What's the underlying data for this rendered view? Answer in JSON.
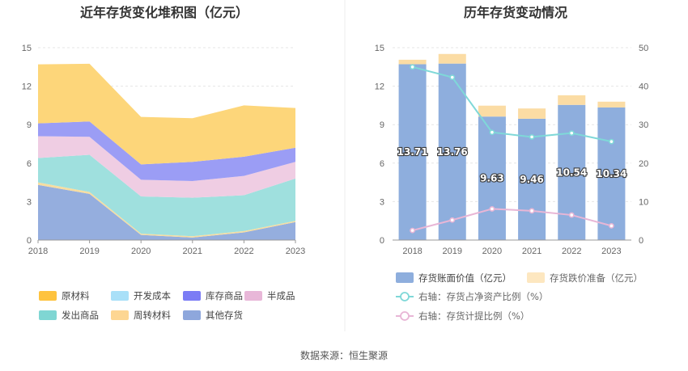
{
  "source": "数据来源：恒生聚源",
  "chart_data": [
    {
      "type": "area",
      "stacked": true,
      "title": "近年存货变化堆积图（亿元）",
      "x": [
        "2018",
        "2019",
        "2020",
        "2021",
        "2022",
        "2023"
      ],
      "ylim": [
        0,
        15
      ],
      "yticks": [
        "0",
        "3",
        "6",
        "9",
        "12",
        "15"
      ],
      "grid": true,
      "legend_position": "bottom",
      "series": [
        {
          "name": "其他存货",
          "color": "#95aede",
          "values": [
            4.3,
            3.6,
            0.4,
            0.2,
            0.6,
            1.4
          ]
        },
        {
          "name": "周转材料",
          "color": "#f7dda0",
          "values": [
            0.2,
            0.15,
            0.1,
            0.1,
            0.1,
            0.1
          ]
        },
        {
          "name": "发出商品",
          "color": "#9fe0de",
          "values": [
            1.9,
            2.9,
            2.9,
            3.0,
            2.8,
            3.3
          ]
        },
        {
          "name": "半成品",
          "color": "#efcde3",
          "values": [
            1.7,
            1.4,
            1.3,
            1.3,
            1.5,
            1.3
          ]
        },
        {
          "name": "库存商品",
          "color": "#9b9df5",
          "values": [
            1.0,
            1.2,
            1.2,
            1.5,
            1.5,
            1.1
          ]
        },
        {
          "name": "开发成本",
          "color": "#b7e3f6",
          "values": [
            0,
            0,
            0,
            0,
            0,
            0
          ]
        },
        {
          "name": "原材料",
          "color": "#fdd67a",
          "values": [
            4.6,
            4.5,
            3.7,
            3.4,
            4.0,
            3.1
          ]
        }
      ],
      "legend_order": [
        "原材料",
        "开发成本",
        "库存商品",
        "半成品",
        "发出商品",
        "周转材料",
        "其他存货"
      ],
      "legend_colors": {
        "原材料": "#fec33f",
        "开发成本": "#a9e0f8",
        "库存商品": "#7b7cf5",
        "半成品": "#e8b7d8",
        "发出商品": "#7fd6d3",
        "周转材料": "#fdd692",
        "其他存货": "#8ea7dc"
      }
    },
    {
      "type": "bar",
      "stacked": true,
      "title": "历年存货变动情况",
      "categories": [
        "2018",
        "2019",
        "2020",
        "2021",
        "2022",
        "2023"
      ],
      "ylim": [
        0,
        15
      ],
      "yticks": [
        "0",
        "3",
        "6",
        "9",
        "12",
        "15"
      ],
      "y2lim": [
        0,
        50
      ],
      "y2ticks": [
        "0",
        "10",
        "20",
        "30",
        "40",
        "50"
      ],
      "grid": true,
      "legend_position": "bottom",
      "series": [
        {
          "name": "存货账面价值（亿元）",
          "color": "#8eaedd",
          "axis": "left",
          "values": [
            13.71,
            13.76,
            9.63,
            9.46,
            10.54,
            10.34
          ],
          "labels": [
            "13.71",
            "13.76",
            "9.63",
            "9.46",
            "10.54",
            "10.34"
          ]
        },
        {
          "name": "存货跌价准备（亿元）",
          "color": "#fbdca4",
          "axis": "left",
          "values": [
            0.35,
            0.75,
            0.85,
            0.8,
            0.75,
            0.45
          ]
        }
      ],
      "lines": [
        {
          "name": "右轴：存货占净资产比例（%）",
          "color": "#7fd8d8",
          "axis": "right",
          "values": [
            45.0,
            42.3,
            28.0,
            26.8,
            27.8,
            25.6
          ]
        },
        {
          "name": "右轴：存货计提比例（%）",
          "color": "#e8b6d6",
          "axis": "right",
          "values": [
            2.5,
            5.2,
            8.1,
            7.6,
            6.5,
            3.7
          ]
        }
      ]
    }
  ]
}
